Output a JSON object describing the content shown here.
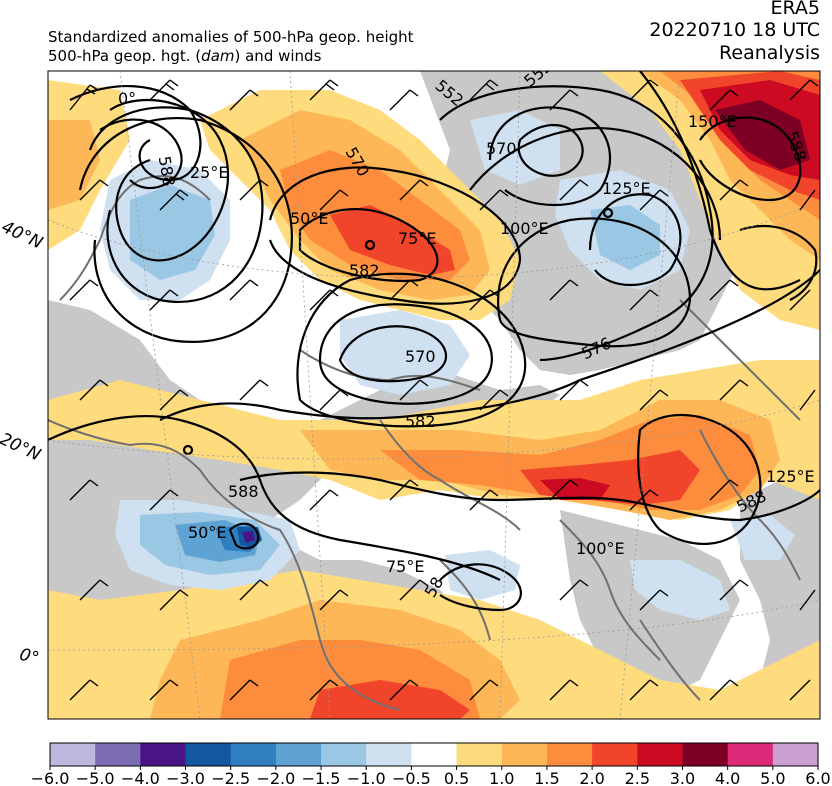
{
  "header": {
    "title_line1": "Standardized anomalies of 500-hPa geop. height",
    "title_line2_prefix": "500-hPa geop. hgt. (",
    "title_line2_unit": "dam",
    "title_line2_suffix": ") and winds",
    "source": "ERA5",
    "datetime": "20220710 18 UTC",
    "product": "Reanalysis"
  },
  "map": {
    "lat_labels": [
      "40°N",
      "20°N",
      "0°"
    ],
    "lon_labels": [
      "0°",
      "25°E",
      "50°E",
      "75°E",
      "100°E",
      "125°E",
      "150°E",
      "50°E",
      "75°E",
      "100°E",
      "125°E"
    ],
    "contour_labels": [
      "552",
      "570",
      "582",
      "570",
      "576",
      "582",
      "588",
      "588",
      "588",
      "552",
      "570",
      "588",
      "58"
    ],
    "colors": {
      "neutral": "#ffffff",
      "land_mask": "#c8c8c8",
      "contour": "#000000",
      "coast": "#707070"
    }
  },
  "colorbar": {
    "ticks": [
      "−6.0",
      "−5.0",
      "−4.0",
      "−3.0",
      "−2.5",
      "−2.0",
      "−1.5",
      "−1.0",
      "−0.5",
      "0.5",
      "1.0",
      "1.5",
      "2.0",
      "2.5",
      "3.0",
      "4.0",
      "5.0",
      "6.0"
    ],
    "colors": [
      "#c0b8dc",
      "#7c6cb4",
      "#4a1486",
      "#1257a0",
      "#2f7fc1",
      "#5ea3d3",
      "#9ac7e3",
      "#cfe0f1",
      "#ffffff",
      "#fedc7e",
      "#feb756",
      "#fd8d3c",
      "#f0452a",
      "#cc0a22",
      "#7d0024",
      "#dd2a78",
      "#c9a0cf"
    ]
  }
}
